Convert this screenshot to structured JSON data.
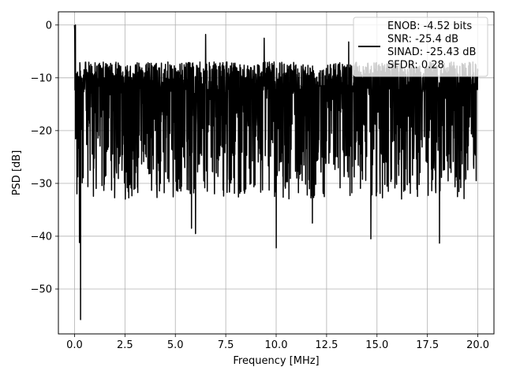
{
  "chart_data": {
    "type": "line",
    "title": "",
    "xlabel": "Frequency [MHz]",
    "ylabel": "PSD [dB]",
    "xlim": [
      -0.8,
      20.8
    ],
    "ylim": [
      -58.5,
      2.5
    ],
    "x_ticks": [
      "0.0",
      "2.5",
      "5.0",
      "7.5",
      "10.0",
      "12.5",
      "15.0",
      "17.5",
      "20.0"
    ],
    "x_tick_values": [
      0,
      2.5,
      5,
      7.5,
      10,
      12.5,
      15,
      17.5,
      20
    ],
    "y_ticks": [
      "0",
      "−10",
      "−20",
      "−30",
      "−40",
      "−50"
    ],
    "y_tick_values": [
      0,
      -10,
      -20,
      -30,
      -40,
      -50
    ],
    "grid": true,
    "legend_position": "top-right",
    "legend_lines": [
      "ENOB: -4.52 bits",
      "SNR: -25.4 dB",
      "SINAD: -25.43 dB",
      "SFDR: 0.28"
    ],
    "series": [
      {
        "name": "ENOB: -4.52 bits\nSNR: -25.4 dB\nSINAD: -25.43 dB\nSFDR: 0.28",
        "color": "#000000",
        "x_range": [
          0,
          20
        ],
        "typical_band_db": [
          -25,
          -7
        ],
        "peak_db": 0,
        "notable_minima": [
          {
            "x": 0.3,
            "y": -55.8
          },
          {
            "x": 0.25,
            "y": -41.2
          },
          {
            "x": 10.0,
            "y": -42.2
          },
          {
            "x": 14.7,
            "y": -40.5
          },
          {
            "x": 18.1,
            "y": -41.3
          },
          {
            "x": 5.8,
            "y": -38.5
          },
          {
            "x": 6.0,
            "y": -39.5
          },
          {
            "x": 11.8,
            "y": -37.5
          }
        ],
        "notable_maxima": [
          {
            "x": 0.05,
            "y": 0
          },
          {
            "x": 6.5,
            "y": -1.8
          },
          {
            "x": 9.4,
            "y": -2.5
          },
          {
            "x": 13.6,
            "y": -3.2
          }
        ]
      }
    ]
  }
}
